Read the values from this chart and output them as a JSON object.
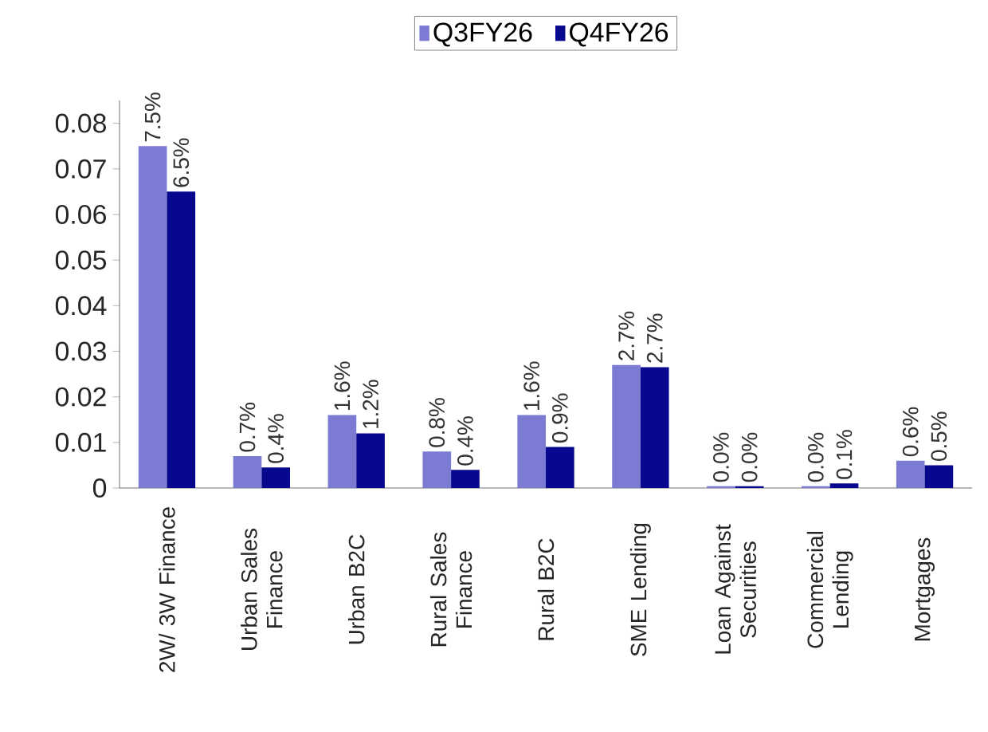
{
  "chart_data": {
    "type": "bar",
    "categories": [
      "2W/ 3W Finance",
      "Urban Sales Finance",
      "Urban B2C",
      "Rural Sales Finance",
      "Rural B2C",
      "SME Lending",
      "Loan Against Securities",
      "Commercial Lending",
      "Mortgages"
    ],
    "series": [
      {
        "name": "Q3FY26",
        "color": "#7b7bd3",
        "values": [
          0.075,
          0.007,
          0.016,
          0.008,
          0.016,
          0.027,
          0.0004,
          0.0004,
          0.006
        ],
        "value_labels": [
          "7.5%",
          "0.7%",
          "1.6%",
          "0.8%",
          "1.6%",
          "2.7%",
          "0.0%",
          "0.0%",
          "0.6%"
        ]
      },
      {
        "name": "Q4FY26",
        "color": "#08088f",
        "values": [
          0.065,
          0.0045,
          0.012,
          0.004,
          0.009,
          0.0265,
          0.0004,
          0.001,
          0.005
        ],
        "value_labels": [
          "6.5%",
          "0.4%",
          "1.2%",
          "0.4%",
          "0.9%",
          "2.7%",
          "0.0%",
          "0.1%",
          "0.5%"
        ]
      }
    ],
    "ylim": [
      0,
      0.085
    ],
    "yticks": [
      0,
      0.01,
      0.02,
      0.03,
      0.04,
      0.05,
      0.06,
      0.07,
      0.08
    ],
    "legend": "top",
    "grid": false
  }
}
